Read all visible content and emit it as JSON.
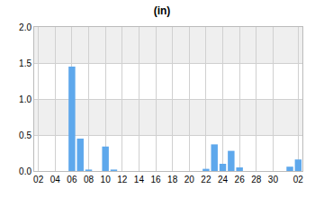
{
  "chart_data": {
    "type": "bar",
    "title": "(in)",
    "categories": [
      "02",
      null,
      "04",
      null,
      "06",
      null,
      "08",
      null,
      "10",
      null,
      "12",
      null,
      "14",
      null,
      "16",
      null,
      "18",
      null,
      "20",
      null,
      "22",
      null,
      "24",
      null,
      "26",
      null,
      "28",
      null,
      "30",
      null,
      null,
      "02"
    ],
    "values": [
      0,
      0,
      0,
      0,
      1.45,
      0.45,
      0.02,
      0,
      0.34,
      0.02,
      0,
      0,
      0,
      0,
      0,
      0,
      0,
      0,
      0,
      0,
      0.03,
      0.37,
      0.1,
      0.28,
      0.05,
      0,
      0,
      0,
      0,
      0,
      0.06,
      0.16
    ],
    "color": "#5ea8ec",
    "ylim": [
      0,
      2
    ],
    "yticks": [
      {
        "value": 0,
        "label": "0.0"
      },
      0.5,
      {
        "value": 1,
        "label": "1.0"
      },
      1.5,
      {
        "value": 2,
        "label": "2.0"
      }
    ],
    "grid": true
  }
}
